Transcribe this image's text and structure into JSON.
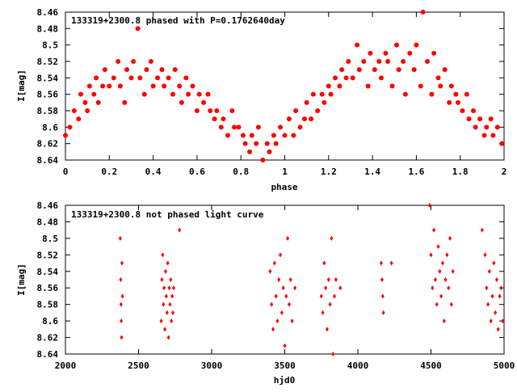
{
  "chart_data": [
    {
      "type": "scatter",
      "title": "133319+2300.8 phased with P=0.1762640day",
      "xlabel": "phase",
      "ylabel": "I[mag]",
      "xlim": [
        0,
        2
      ],
      "ylim": [
        8.64,
        8.46
      ],
      "y_inverted": true,
      "grid": false,
      "marker": "filled circle",
      "color": "#ff0000",
      "x_ticks": [
        0,
        0.2,
        0.4,
        0.6,
        0.8,
        1,
        1.2,
        1.4,
        1.6,
        1.8,
        2
      ],
      "x_tick_labels": [
        "0",
        "0.2",
        "0.4",
        "0.6",
        "0.8",
        "1",
        "1.2",
        "1.4",
        "1.6",
        "1.8",
        "2"
      ],
      "y_ticks": [
        8.46,
        8.48,
        8.5,
        8.52,
        8.54,
        8.56,
        8.58,
        8.6,
        8.62,
        8.64
      ],
      "y_tick_labels": [
        "8.46",
        "8.48",
        "8.5",
        "8.52",
        "8.54",
        "8.56",
        "8.58",
        "8.6",
        "8.62",
        "8.64"
      ],
      "x": [
        0.0,
        0.02,
        0.04,
        0.06,
        0.07,
        0.09,
        0.1,
        0.11,
        0.13,
        0.14,
        0.15,
        0.17,
        0.18,
        0.2,
        0.22,
        0.24,
        0.25,
        0.27,
        0.28,
        0.3,
        0.31,
        0.33,
        0.34,
        0.36,
        0.37,
        0.39,
        0.4,
        0.42,
        0.44,
        0.45,
        0.47,
        0.49,
        0.5,
        0.52,
        0.53,
        0.55,
        0.56,
        0.58,
        0.6,
        0.61,
        0.63,
        0.65,
        0.66,
        0.68,
        0.69,
        0.71,
        0.72,
        0.74,
        0.76,
        0.77,
        0.79,
        0.81,
        0.82,
        0.84,
        0.85,
        0.87,
        0.88,
        0.9,
        0.92,
        0.93,
        0.95,
        0.96,
        0.98,
        1.0,
        1.02,
        1.04,
        1.05,
        1.07,
        1.09,
        1.1,
        1.12,
        1.13,
        1.15,
        1.17,
        1.18,
        1.2,
        1.21,
        1.23,
        1.25,
        1.26,
        1.28,
        1.29,
        1.31,
        1.33,
        1.34,
        1.36,
        1.38,
        1.39,
        1.41,
        1.43,
        1.44,
        1.46,
        1.47,
        1.49,
        1.51,
        1.52,
        1.54,
        1.55,
        1.57,
        1.59,
        1.6,
        1.62,
        1.63,
        1.65,
        1.67,
        1.68,
        1.7,
        1.71,
        1.73,
        1.75,
        1.76,
        1.78,
        1.79,
        1.81,
        1.83,
        1.84,
        1.86,
        1.87,
        1.89,
        1.91,
        1.92,
        1.94,
        1.95,
        1.97,
        1.99
      ],
      "y": [
        8.61,
        8.6,
        8.58,
        8.59,
        8.56,
        8.57,
        8.58,
        8.55,
        8.56,
        8.54,
        8.57,
        8.55,
        8.53,
        8.55,
        8.54,
        8.52,
        8.55,
        8.57,
        8.53,
        8.54,
        8.52,
        8.48,
        8.54,
        8.56,
        8.53,
        8.52,
        8.55,
        8.54,
        8.53,
        8.55,
        8.54,
        8.56,
        8.53,
        8.55,
        8.57,
        8.54,
        8.56,
        8.55,
        8.58,
        8.56,
        8.57,
        8.56,
        8.58,
        8.59,
        8.58,
        8.6,
        8.59,
        8.61,
        8.58,
        8.6,
        8.6,
        8.61,
        8.62,
        8.63,
        8.61,
        8.62,
        8.6,
        8.64,
        8.62,
        8.63,
        8.61,
        8.62,
        8.6,
        8.61,
        8.59,
        8.61,
        8.58,
        8.6,
        8.59,
        8.57,
        8.59,
        8.56,
        8.58,
        8.56,
        8.57,
        8.55,
        8.56,
        8.54,
        8.55,
        8.53,
        8.54,
        8.52,
        8.54,
        8.5,
        8.53,
        8.52,
        8.55,
        8.51,
        8.53,
        8.52,
        8.54,
        8.51,
        8.52,
        8.55,
        8.5,
        8.53,
        8.52,
        8.56,
        8.51,
        8.53,
        8.5,
        8.55,
        8.46,
        8.52,
        8.56,
        8.51,
        8.54,
        8.55,
        8.53,
        8.57,
        8.55,
        8.56,
        8.57,
        8.58,
        8.56,
        8.59,
        8.58,
        8.6,
        8.59,
        8.61,
        8.6,
        8.59,
        8.61,
        8.6,
        8.62
      ]
    },
    {
      "type": "scatter",
      "title": "133319+2300.8 not phased light curve",
      "xlabel": "hjd0",
      "ylabel": "I[mag]",
      "xlim": [
        2000,
        5000
      ],
      "ylim": [
        8.64,
        8.46
      ],
      "y_inverted": true,
      "grid": false,
      "marker": "small filled diamond",
      "color": "#ff0000",
      "x_ticks": [
        2000,
        2500,
        3000,
        3500,
        4000,
        4500,
        5000
      ],
      "x_tick_labels": [
        "2000",
        "2500",
        "3000",
        "3500",
        "4000",
        "4500",
        "5000"
      ],
      "y_ticks": [
        8.46,
        8.48,
        8.5,
        8.52,
        8.54,
        8.56,
        8.58,
        8.6,
        8.62,
        8.64
      ],
      "y_tick_labels": [
        "8.46",
        "8.48",
        "8.5",
        "8.52",
        "8.54",
        "8.56",
        "8.58",
        "8.6",
        "8.62",
        "8.64"
      ],
      "x": [
        2375,
        2378,
        2380,
        2382,
        2384,
        2387,
        2390,
        2655,
        2660,
        2665,
        2670,
        2675,
        2680,
        2685,
        2690,
        2695,
        2700,
        2705,
        2710,
        2715,
        2720,
        2725,
        2730,
        2735,
        2740,
        2780,
        3400,
        3410,
        3420,
        3430,
        3440,
        3450,
        3460,
        3470,
        3480,
        3490,
        3500,
        3510,
        3520,
        3530,
        3540,
        3550,
        3570,
        3750,
        3760,
        3770,
        3780,
        3790,
        3800,
        3810,
        3820,
        3830,
        3840,
        3850,
        3880,
        4160,
        4165,
        4170,
        4175,
        4230,
        4490,
        4500,
        4510,
        4520,
        4530,
        4540,
        4550,
        4560,
        4570,
        4580,
        4590,
        4600,
        4610,
        4620,
        4630,
        4640,
        4650,
        4850,
        4870,
        4880,
        4890,
        4900,
        4910,
        4920,
        4930,
        4940,
        4950,
        4960,
        4970,
        4980,
        4990
      ],
      "y": [
        8.5,
        8.55,
        8.58,
        8.6,
        8.62,
        8.53,
        8.57,
        8.6,
        8.55,
        8.52,
        8.58,
        8.56,
        8.61,
        8.54,
        8.57,
        8.59,
        8.53,
        8.62,
        8.56,
        8.58,
        8.55,
        8.6,
        8.57,
        8.59,
        8.56,
        8.49,
        8.54,
        8.58,
        8.61,
        8.53,
        8.57,
        8.6,
        8.55,
        8.52,
        8.59,
        8.56,
        8.63,
        8.57,
        8.5,
        8.58,
        8.55,
        8.6,
        8.56,
        8.57,
        8.59,
        8.53,
        8.56,
        8.61,
        8.55,
        8.58,
        8.5,
        8.64,
        8.57,
        8.55,
        8.56,
        8.53,
        8.55,
        8.57,
        8.59,
        8.53,
        8.46,
        8.52,
        8.56,
        8.49,
        8.55,
        8.58,
        8.51,
        8.54,
        8.57,
        8.53,
        8.6,
        8.55,
        8.52,
        8.56,
        8.5,
        8.58,
        8.54,
        8.49,
        8.52,
        8.56,
        8.58,
        8.54,
        8.6,
        8.57,
        8.53,
        8.59,
        8.55,
        8.61,
        8.57,
        8.56,
        8.6
      ]
    }
  ]
}
